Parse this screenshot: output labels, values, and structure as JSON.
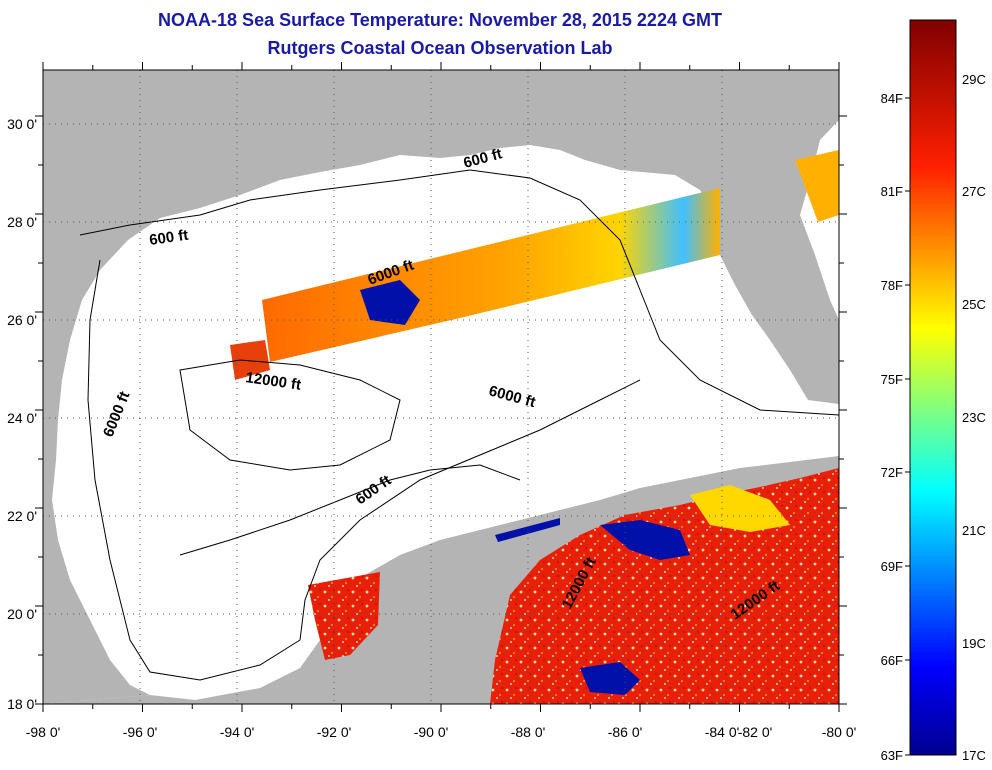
{
  "title": {
    "line1": "NOAA-18 Sea Surface Temperature:  November 28, 2015 2224 GMT",
    "line2": "Rutgers Coastal Ocean Observation Lab"
  },
  "map": {
    "lon_labels": [
      "-98 0'",
      "-96 0'",
      "-94 0'",
      "-92 0'",
      "-90 0'",
      "-88 0'",
      "-86 0'",
      "-84 0'",
      "-82 0'",
      "-80 0'"
    ],
    "lat_labels": [
      "18 0'",
      "20 0'",
      "22 0'",
      "24 0'",
      "26 0'",
      "28 0'",
      "30 0'"
    ],
    "contour_labels": [
      "600 ft",
      "600 ft",
      "6000 ft",
      "12000 ft",
      "6000 ft",
      "6000 ft",
      "600 ft",
      "12000 ft",
      "12000 ft"
    ],
    "colors": {
      "land": "#b4b4b4",
      "ocean": "#ffffff",
      "title": "#1a1aa6"
    }
  },
  "colorbar": {
    "fahrenheit_labels": [
      "84F",
      "81F",
      "78F",
      "75F",
      "72F",
      "69F",
      "66F",
      "63F"
    ],
    "celsius_labels": [
      "29C",
      "27C",
      "25C",
      "23C",
      "21C",
      "19C",
      "17C"
    ],
    "range_c": [
      17,
      30
    ]
  }
}
